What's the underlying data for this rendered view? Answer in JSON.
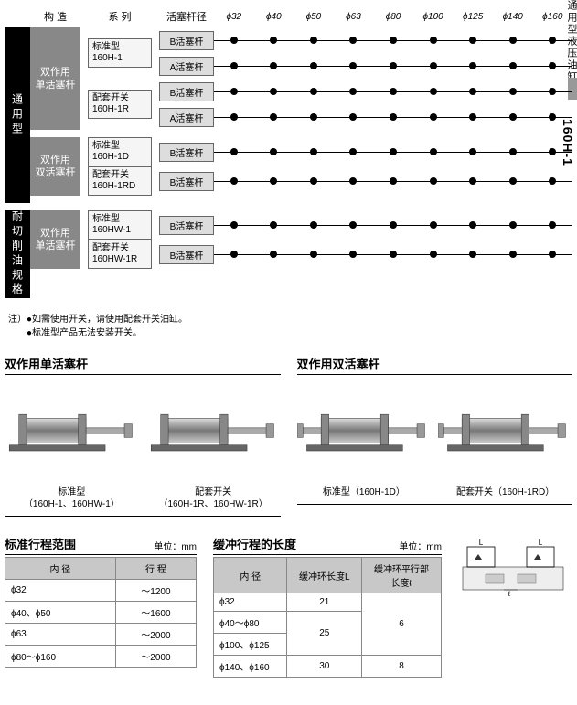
{
  "side_label": "通用型液压油缸",
  "side_model": "160H-1",
  "header": {
    "construction": "构 造",
    "series": "系 列",
    "rod": "活塞杆径"
  },
  "bores": [
    "ϕ32",
    "ϕ40",
    "ϕ50",
    "ϕ63",
    "ϕ80",
    "ϕ100",
    "ϕ125",
    "ϕ140",
    "ϕ160"
  ],
  "groups": [
    {
      "vbar": "通用型",
      "subgroups": [
        {
          "gray": "双作用\n单活塞杆",
          "series": [
            {
              "l1": "标准型",
              "l2": "160H-1",
              "rods": [
                "B活塞杆",
                "A活塞杆"
              ]
            },
            {
              "l1": "配套开关",
              "l2": "160H-1R",
              "rods": [
                "B活塞杆",
                "A活塞杆"
              ]
            }
          ]
        },
        {
          "gray": "双作用\n双活塞杆",
          "series": [
            {
              "l1": "标准型",
              "l2": "160H-1D",
              "rods": [
                "B活塞杆"
              ]
            },
            {
              "l1": "配套开关",
              "l2": "160H-1RD",
              "rods": [
                "B活塞杆"
              ]
            }
          ]
        }
      ]
    },
    {
      "vbar": "耐切削油规格",
      "subgroups": [
        {
          "gray": "双作用\n单活塞杆",
          "series": [
            {
              "l1": "标准型",
              "l2": "160HW-1",
              "rods": [
                "B活塞杆"
              ]
            },
            {
              "l1": "配套开关",
              "l2": "160HW-1R",
              "rods": [
                "B活塞杆"
              ]
            }
          ]
        }
      ]
    }
  ],
  "notes_prefix": "注）",
  "notes": [
    "如需使用开关，请使用配套开关油缸。",
    "标准型产品无法安装开关。"
  ],
  "products": [
    {
      "title": "双作用单活塞杆",
      "items": [
        {
          "caption1": "标准型",
          "caption2": "（160H-1、160HW-1）",
          "double": false
        },
        {
          "caption1": "配套开关",
          "caption2": "（160H-1R、160HW-1R）",
          "double": false
        }
      ]
    },
    {
      "title": "双作用双活塞杆",
      "items": [
        {
          "caption1": "标准型（160H-1D）",
          "caption2": "",
          "double": true
        },
        {
          "caption1": "配套开关（160H-1RD）",
          "caption2": "",
          "double": true
        }
      ]
    }
  ],
  "stroke_table": {
    "title": "标准行程范围",
    "unit": "单位：mm",
    "headers": [
      "内 径",
      "行 程"
    ],
    "rows": [
      [
        "ϕ32",
        "～1200"
      ],
      [
        "ϕ40、ϕ50",
        "～1600"
      ],
      [
        "ϕ63",
        "～2000"
      ],
      [
        "ϕ80～ϕ160",
        "～2000"
      ]
    ]
  },
  "cushion_table": {
    "title": "缓冲行程的长度",
    "unit": "单位：mm",
    "headers": [
      "内 径",
      "缓冲环长度L",
      "缓冲环平行部\n长度ℓ"
    ],
    "rows": [
      {
        "bore": "ϕ32",
        "L": "21",
        "l": "6",
        "lspan": 3
      },
      {
        "bore": "ϕ40～ϕ80",
        "L": "25",
        "lspan_join": true,
        "Lspan": 2
      },
      {
        "bore": "ϕ100、ϕ125"
      },
      {
        "bore": "ϕ140、ϕ160",
        "L": "30",
        "l": "8"
      }
    ]
  },
  "diagram_labels": {
    "L": "L",
    "l": "ℓ"
  }
}
